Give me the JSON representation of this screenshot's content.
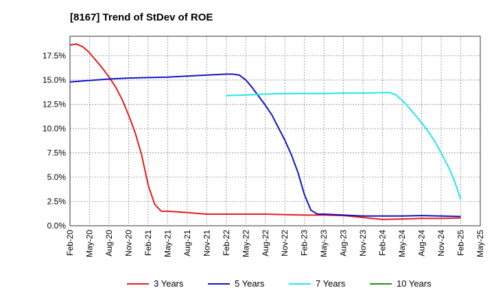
{
  "chart_data": {
    "type": "line",
    "title": "[8167]  Trend of StDev of ROE",
    "xlabel": "",
    "ylabel": "",
    "ylim": [
      0,
      19.5
    ],
    "grid": true,
    "legend_position": "bottom",
    "x_ticks": [
      "Feb-20",
      "May-20",
      "Aug-20",
      "Nov-20",
      "Feb-21",
      "May-21",
      "Aug-21",
      "Nov-21",
      "Feb-22",
      "May-22",
      "Aug-22",
      "Nov-22",
      "Feb-23",
      "May-23",
      "Aug-23",
      "Nov-23",
      "Feb-24",
      "May-24",
      "Aug-24",
      "Nov-24",
      "Feb-25",
      "May-25"
    ],
    "y_ticks": [
      {
        "value": 0,
        "label": "0.0%"
      },
      {
        "value": 2.5,
        "label": "2.5%"
      },
      {
        "value": 5,
        "label": "5.0%"
      },
      {
        "value": 7.5,
        "label": "7.5%"
      },
      {
        "value": 10,
        "label": "10.0%"
      },
      {
        "value": 12.5,
        "label": "12.5%"
      },
      {
        "value": 15,
        "label": "15.0%"
      },
      {
        "value": 17.5,
        "label": "17.5%"
      }
    ],
    "series": [
      {
        "name": "3 Years",
        "color": "#e31a1c",
        "points": [
          [
            "Feb-20",
            18.6
          ],
          [
            "Mar-20",
            18.7
          ],
          [
            "Apr-20",
            18.4
          ],
          [
            "May-20",
            17.8
          ],
          [
            "Jun-20",
            17.0
          ],
          [
            "Jul-20",
            16.2
          ],
          [
            "Aug-20",
            15.3
          ],
          [
            "Sep-20",
            14.3
          ],
          [
            "Oct-20",
            13.0
          ],
          [
            "Nov-20",
            11.4
          ],
          [
            "Dec-20",
            9.6
          ],
          [
            "Jan-21",
            7.3
          ],
          [
            "Feb-21",
            4.2
          ],
          [
            "Mar-21",
            2.2
          ],
          [
            "Apr-21",
            1.5
          ],
          [
            "May-21",
            1.5
          ],
          [
            "Aug-21",
            1.35
          ],
          [
            "Nov-21",
            1.2
          ],
          [
            "Feb-22",
            1.2
          ],
          [
            "May-22",
            1.2
          ],
          [
            "Aug-22",
            1.2
          ],
          [
            "Nov-22",
            1.15
          ],
          [
            "Feb-23",
            1.1
          ],
          [
            "May-23",
            1.1
          ],
          [
            "Aug-23",
            1.05
          ],
          [
            "Nov-23",
            0.85
          ],
          [
            "Feb-24",
            0.65
          ],
          [
            "May-24",
            0.7
          ],
          [
            "Aug-24",
            0.75
          ],
          [
            "Nov-24",
            0.75
          ],
          [
            "Feb-25",
            0.8
          ]
        ]
      },
      {
        "name": "5 Years",
        "color": "#1010c8",
        "points": [
          [
            "Feb-20",
            14.8
          ],
          [
            "May-20",
            14.95
          ],
          [
            "Aug-20",
            15.1
          ],
          [
            "Nov-20",
            15.2
          ],
          [
            "Feb-21",
            15.25
          ],
          [
            "May-21",
            15.3
          ],
          [
            "Aug-21",
            15.4
          ],
          [
            "Nov-21",
            15.5
          ],
          [
            "Feb-22",
            15.6
          ],
          [
            "Mar-22",
            15.6
          ],
          [
            "Apr-22",
            15.5
          ],
          [
            "May-22",
            15.0
          ],
          [
            "Jun-22",
            14.2
          ],
          [
            "Jul-22",
            13.3
          ],
          [
            "Aug-22",
            12.4
          ],
          [
            "Sep-22",
            11.4
          ],
          [
            "Oct-22",
            10.1
          ],
          [
            "Nov-22",
            8.8
          ],
          [
            "Dec-22",
            7.3
          ],
          [
            "Jan-23",
            5.5
          ],
          [
            "Feb-23",
            3.2
          ],
          [
            "Mar-23",
            1.6
          ],
          [
            "Apr-23",
            1.2
          ],
          [
            "May-23",
            1.2
          ],
          [
            "Aug-23",
            1.1
          ],
          [
            "Nov-23",
            1.0
          ],
          [
            "Feb-24",
            1.0
          ],
          [
            "May-24",
            1.0
          ],
          [
            "Aug-24",
            1.05
          ],
          [
            "Nov-24",
            1.0
          ],
          [
            "Feb-25",
            0.95
          ]
        ]
      },
      {
        "name": "7 Years",
        "color": "#22e6e6",
        "points": [
          [
            "Feb-22",
            13.4
          ],
          [
            "May-22",
            13.45
          ],
          [
            "Aug-22",
            13.55
          ],
          [
            "Nov-22",
            13.6
          ],
          [
            "Feb-23",
            13.6
          ],
          [
            "May-23",
            13.6
          ],
          [
            "Aug-23",
            13.65
          ],
          [
            "Nov-23",
            13.65
          ],
          [
            "Feb-24",
            13.7
          ],
          [
            "Mar-24",
            13.7
          ],
          [
            "Apr-24",
            13.5
          ],
          [
            "May-24",
            12.9
          ],
          [
            "Jun-24",
            12.2
          ],
          [
            "Jul-24",
            11.4
          ],
          [
            "Aug-24",
            10.6
          ],
          [
            "Sep-24",
            9.7
          ],
          [
            "Oct-24",
            8.7
          ],
          [
            "Nov-24",
            7.5
          ],
          [
            "Dec-24",
            6.2
          ],
          [
            "Jan-25",
            4.7
          ],
          [
            "Feb-25",
            2.7
          ]
        ]
      },
      {
        "name": "10 Years",
        "color": "#228b22",
        "points": []
      }
    ]
  }
}
